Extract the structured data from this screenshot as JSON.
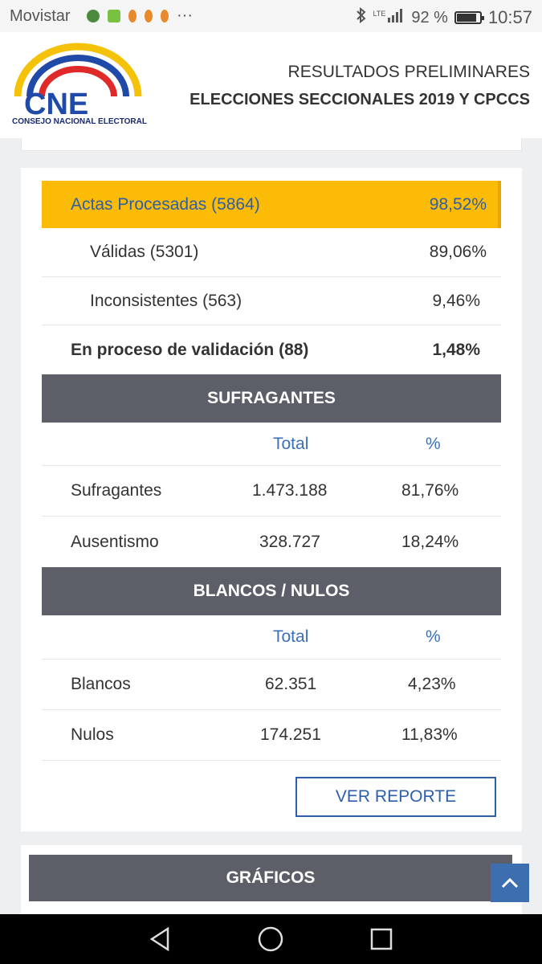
{
  "status_bar": {
    "carrier": "Movistar",
    "ellipsis": "···",
    "network": "LTE",
    "battery": "92 %",
    "battery_level": 0.92,
    "time": "10:57"
  },
  "header": {
    "logo_text": "CNE",
    "logo_caption": "CONSEJO NACIONAL ELECTORAL",
    "title": "RESULTADOS PRELIMINARES",
    "subtitle": "ELECCIONES SECCIONALES 2019 Y CPCCS"
  },
  "actas": {
    "procesadas": {
      "label": "Actas Procesadas (5864)",
      "pct": "98,52%"
    },
    "validas": {
      "label": "Válidas (5301)",
      "pct": "89,06%"
    },
    "inconsistentes": {
      "label": "Inconsistentes (563)",
      "pct": "9,46%"
    },
    "validacion": {
      "label": "En proceso de validación (88)",
      "pct": "1,48%"
    }
  },
  "sufragantes": {
    "title": "SUFRAGANTES",
    "col_total": "Total",
    "col_pct": "%",
    "rows": [
      {
        "label": "Sufragantes",
        "total": "1.473.188",
        "pct": "81,76%"
      },
      {
        "label": "Ausentismo",
        "total": "328.727",
        "pct": "18,24%"
      }
    ]
  },
  "blancos_nulos": {
    "title": "BLANCOS / NULOS",
    "col_total": "Total",
    "col_pct": "%",
    "rows": [
      {
        "label": "Blancos",
        "total": "62.351",
        "pct": "4,23%"
      },
      {
        "label": "Nulos",
        "total": "174.251",
        "pct": "11,83%"
      }
    ]
  },
  "report_button": "VER REPORTE",
  "graficos_title": "GRÁFICOS",
  "colors": {
    "highlight": "#fbbb07",
    "header_gray": "#5c5f67",
    "link_blue": "#2d5fa8",
    "logo_blue": "#1a2a6c"
  },
  "icons": {
    "scroll_top": "chevron-up-icon",
    "nav_back": "triangle-back-icon",
    "nav_home": "circle-home-icon",
    "nav_recents": "square-recents-icon"
  }
}
